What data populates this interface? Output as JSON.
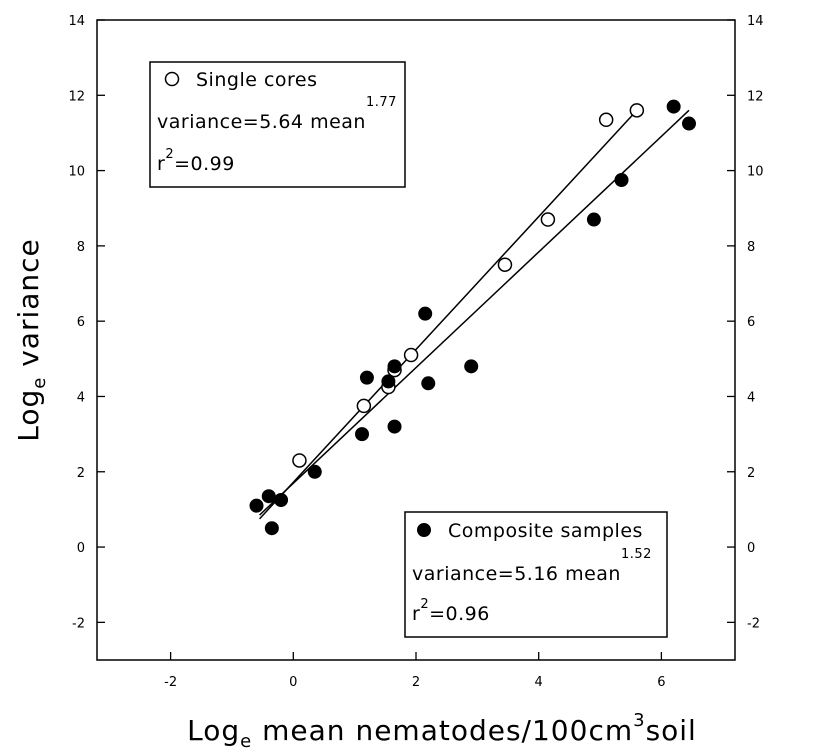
{
  "chart_data": {
    "type": "scatter",
    "xlabel": {
      "base": "Log",
      "sub": "e",
      "mid": " mean nematodes/100cm",
      "sup": "3",
      "end": "soil"
    },
    "ylabel": {
      "base": "Log",
      "sub": "e",
      "end": " variance"
    },
    "xlim": [
      -3.2,
      7.2
    ],
    "ylim": [
      -3,
      14
    ],
    "xticks": [
      -2,
      0,
      2,
      4,
      6
    ],
    "yticks": [
      -2,
      0,
      2,
      4,
      6,
      8,
      10,
      12,
      14
    ],
    "xtick_labels": [
      "-2",
      "0",
      "2",
      "4",
      "6"
    ],
    "ytick_labels": [
      "-2",
      "0",
      "2",
      "4",
      "6",
      "8",
      "10",
      "12",
      "14"
    ],
    "right_axis_labels": true,
    "grid": false,
    "series": [
      {
        "name": "Single cores",
        "marker": "open-circle",
        "points": [
          [
            0.1,
            2.3
          ],
          [
            1.15,
            3.75
          ],
          [
            1.55,
            4.25
          ],
          [
            1.65,
            4.7
          ],
          [
            1.92,
            5.1
          ],
          [
            3.45,
            7.5
          ],
          [
            4.15,
            8.7
          ],
          [
            5.1,
            11.35
          ],
          [
            5.6,
            11.6
          ]
        ],
        "fit_line": {
          "x": [
            -0.55,
            5.6
          ],
          "y": [
            0.75,
            11.6
          ]
        }
      },
      {
        "name": "Composite samples",
        "marker": "filled-circle",
        "points": [
          [
            -0.6,
            1.1
          ],
          [
            -0.4,
            1.35
          ],
          [
            -0.35,
            0.5
          ],
          [
            -0.2,
            1.25
          ],
          [
            0.35,
            2.0
          ],
          [
            1.12,
            3.0
          ],
          [
            1.2,
            4.5
          ],
          [
            1.55,
            4.4
          ],
          [
            1.65,
            4.8
          ],
          [
            1.65,
            3.2
          ],
          [
            2.15,
            6.2
          ],
          [
            2.2,
            4.35
          ],
          [
            2.9,
            4.8
          ],
          [
            4.9,
            8.7
          ],
          [
            5.35,
            9.75
          ],
          [
            6.2,
            11.7
          ],
          [
            6.45,
            11.25
          ]
        ],
        "fit_line": {
          "x": [
            -0.55,
            6.45
          ],
          "y": [
            0.85,
            11.6
          ]
        }
      }
    ],
    "annotations": {
      "single": {
        "label": "Single cores",
        "eq_prefix": "variance=5.64 mean",
        "eq_exp": "1.77",
        "r2_prefix": "r",
        "r2_exp": "2",
        "r2_value": "=0.99"
      },
      "composite": {
        "label": "Composite samples",
        "eq_prefix": "variance=5.16 mean",
        "eq_exp": "1.52",
        "r2_prefix": "r",
        "r2_exp": "2",
        "r2_value": "=0.96"
      }
    }
  }
}
